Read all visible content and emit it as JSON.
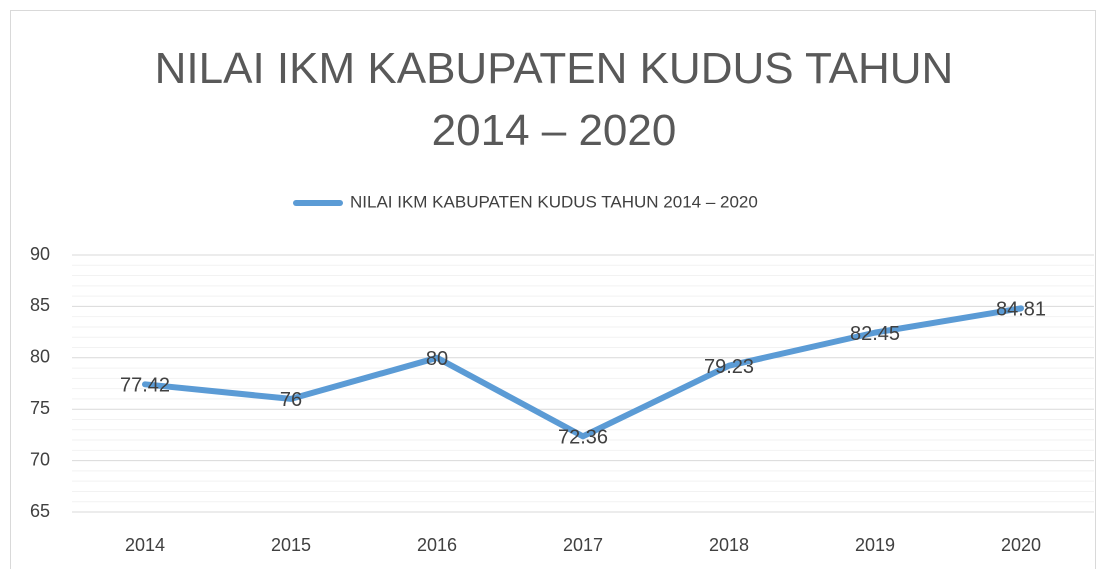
{
  "chart_data": {
    "type": "line",
    "title": "NILAI IKM KABUPATEN KUDUS TAHUN 2014 – 2020",
    "categories": [
      "2014",
      "2015",
      "2016",
      "2017",
      "2018",
      "2019",
      "2020"
    ],
    "series": [
      {
        "name": "NILAI IKM KABUPATEN KUDUS TAHUN 2014 – 2020",
        "color": "#5b9bd5",
        "values": [
          77.42,
          76,
          80,
          72.36,
          79.23,
          82.45,
          84.81
        ]
      }
    ],
    "ylim": [
      65,
      90
    ],
    "yticks": [
      65,
      70,
      75,
      80,
      85,
      90
    ],
    "minor_yticks": [
      66,
      67,
      68,
      69,
      71,
      72,
      73,
      74,
      76,
      77,
      78,
      79,
      81,
      82,
      83,
      84,
      86,
      87,
      88,
      89
    ],
    "grid": true,
    "legend": "top",
    "data_labels": true
  }
}
